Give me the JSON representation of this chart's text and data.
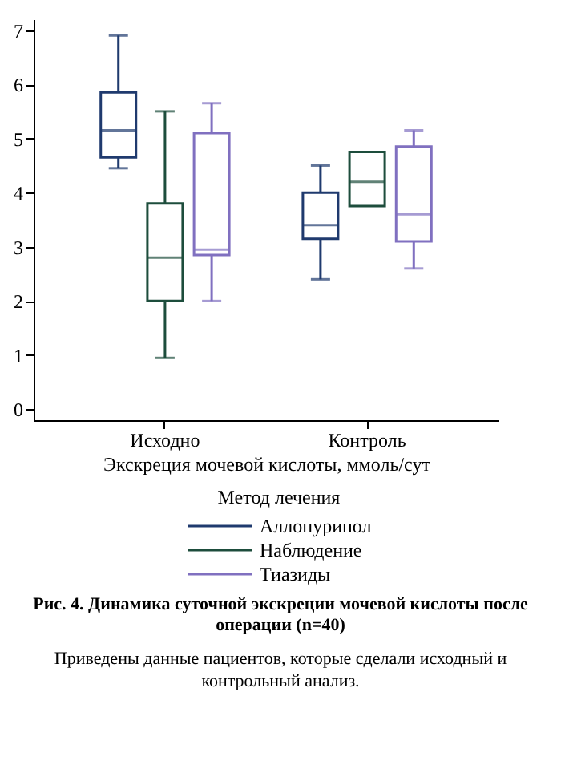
{
  "chart_data": {
    "type": "box",
    "title": "Рис. 4. Динамика суточной экскреции мочевой кислоты после операции (n=40)",
    "annotations": [
      "Приведены данные пациентов, которые сделали исходный и контрольный анализ."
    ],
    "xlabel": "Экскреция мочевой кислоты, ммоль/сут",
    "legend_title": "Метод лечения",
    "legend": "bottom",
    "categories": [
      "Исходно",
      "Контроль"
    ],
    "ylim": [
      -0.2,
      7.2
    ],
    "yticks": [
      0,
      1,
      2,
      3,
      4,
      5,
      6,
      7
    ],
    "series": [
      {
        "name": "Аллопуринол",
        "color": "#1f3a6e",
        "boxes": [
          {
            "low": 4.45,
            "q1": 4.65,
            "median": 5.15,
            "q3": 5.85,
            "high": 6.9
          },
          {
            "low": 2.4,
            "q1": 3.15,
            "median": 3.4,
            "q3": 4.0,
            "high": 4.5
          }
        ]
      },
      {
        "name": "Наблюдение",
        "color": "#1d4d3c",
        "boxes": [
          {
            "low": 0.95,
            "q1": 2.0,
            "median": 2.8,
            "q3": 3.8,
            "high": 5.5
          },
          {
            "low": 3.75,
            "q1": 3.75,
            "median": 4.2,
            "q3": 4.75,
            "high": 4.75
          }
        ]
      },
      {
        "name": "Тиазиды",
        "color": "#8070c0",
        "boxes": [
          {
            "low": 2.0,
            "q1": 2.85,
            "median": 2.95,
            "q3": 5.1,
            "high": 5.65
          },
          {
            "low": 2.6,
            "q1": 3.1,
            "median": 3.6,
            "q3": 4.85,
            "high": 5.15
          }
        ]
      }
    ]
  }
}
